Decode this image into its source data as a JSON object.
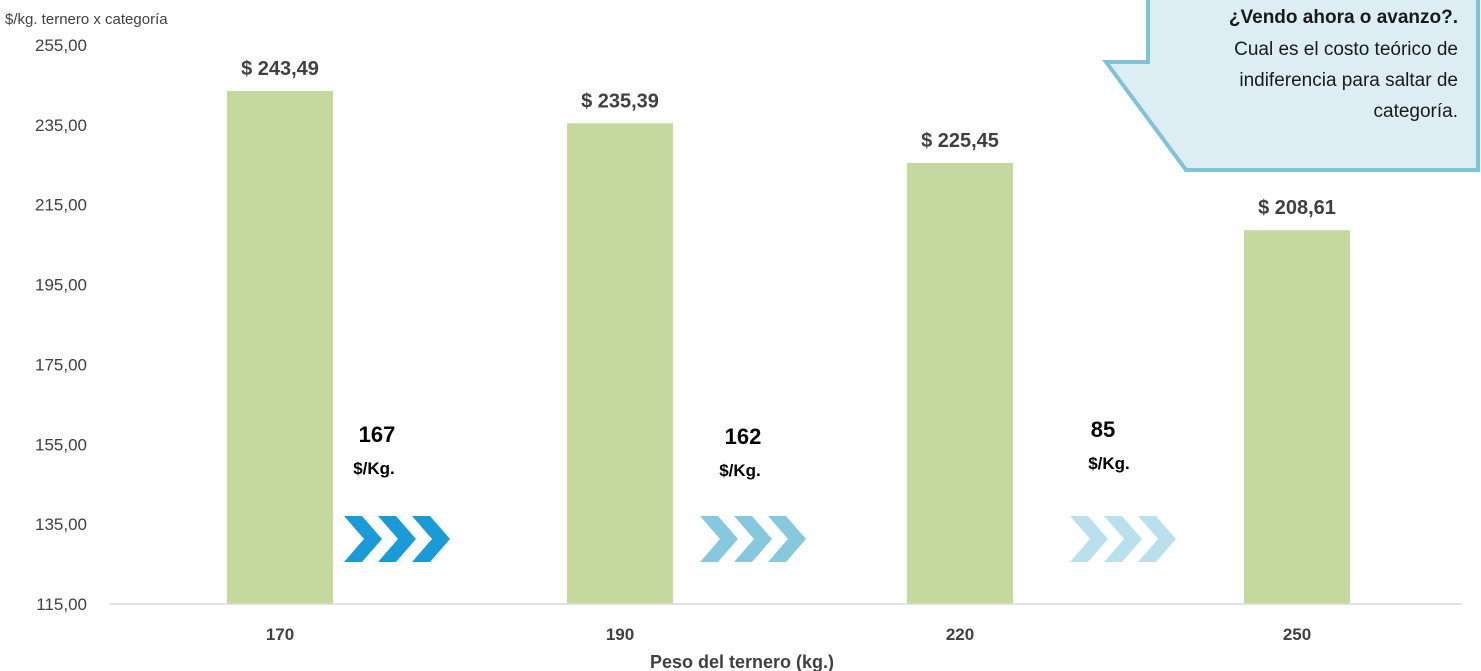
{
  "chart_data": {
    "type": "bar",
    "categories": [
      "170",
      "190",
      "220",
      "250"
    ],
    "values": [
      243.49,
      235.39,
      225.45,
      208.61
    ],
    "data_labels": [
      "$ 243,49",
      "$ 235,39",
      "$ 225,45",
      "$ 208,61"
    ],
    "ylabel": "$/kg. ternero x categoría",
    "xlabel": "Peso del ternero (kg.)",
    "ylim": [
      115,
      255
    ],
    "yticks": [
      115,
      135,
      155,
      175,
      195,
      215,
      235,
      255
    ],
    "ytick_labels": [
      "115,00",
      "135,00",
      "155,00",
      "175,00",
      "195,00",
      "215,00",
      "235,00",
      "255,00"
    ],
    "grid": false,
    "bar_color": "#c5d89d",
    "annotations": [
      {
        "value": "167",
        "unit": "$/Kg.",
        "arrow_color": "#1a9ad6"
      },
      {
        "value": "162",
        "unit": "$/Kg.",
        "arrow_color": "#86c8dd"
      },
      {
        "value": "85",
        "unit": "$/Kg.",
        "arrow_color": "#b9e0ec"
      }
    ]
  },
  "callout": {
    "title": "¿Vendo ahora o avanzo?.",
    "lines": [
      "Cual es el costo teórico de",
      "indiferencia para saltar de",
      "categoría."
    ],
    "fill": "#dcedf3",
    "stroke": "#7fc3d8"
  }
}
